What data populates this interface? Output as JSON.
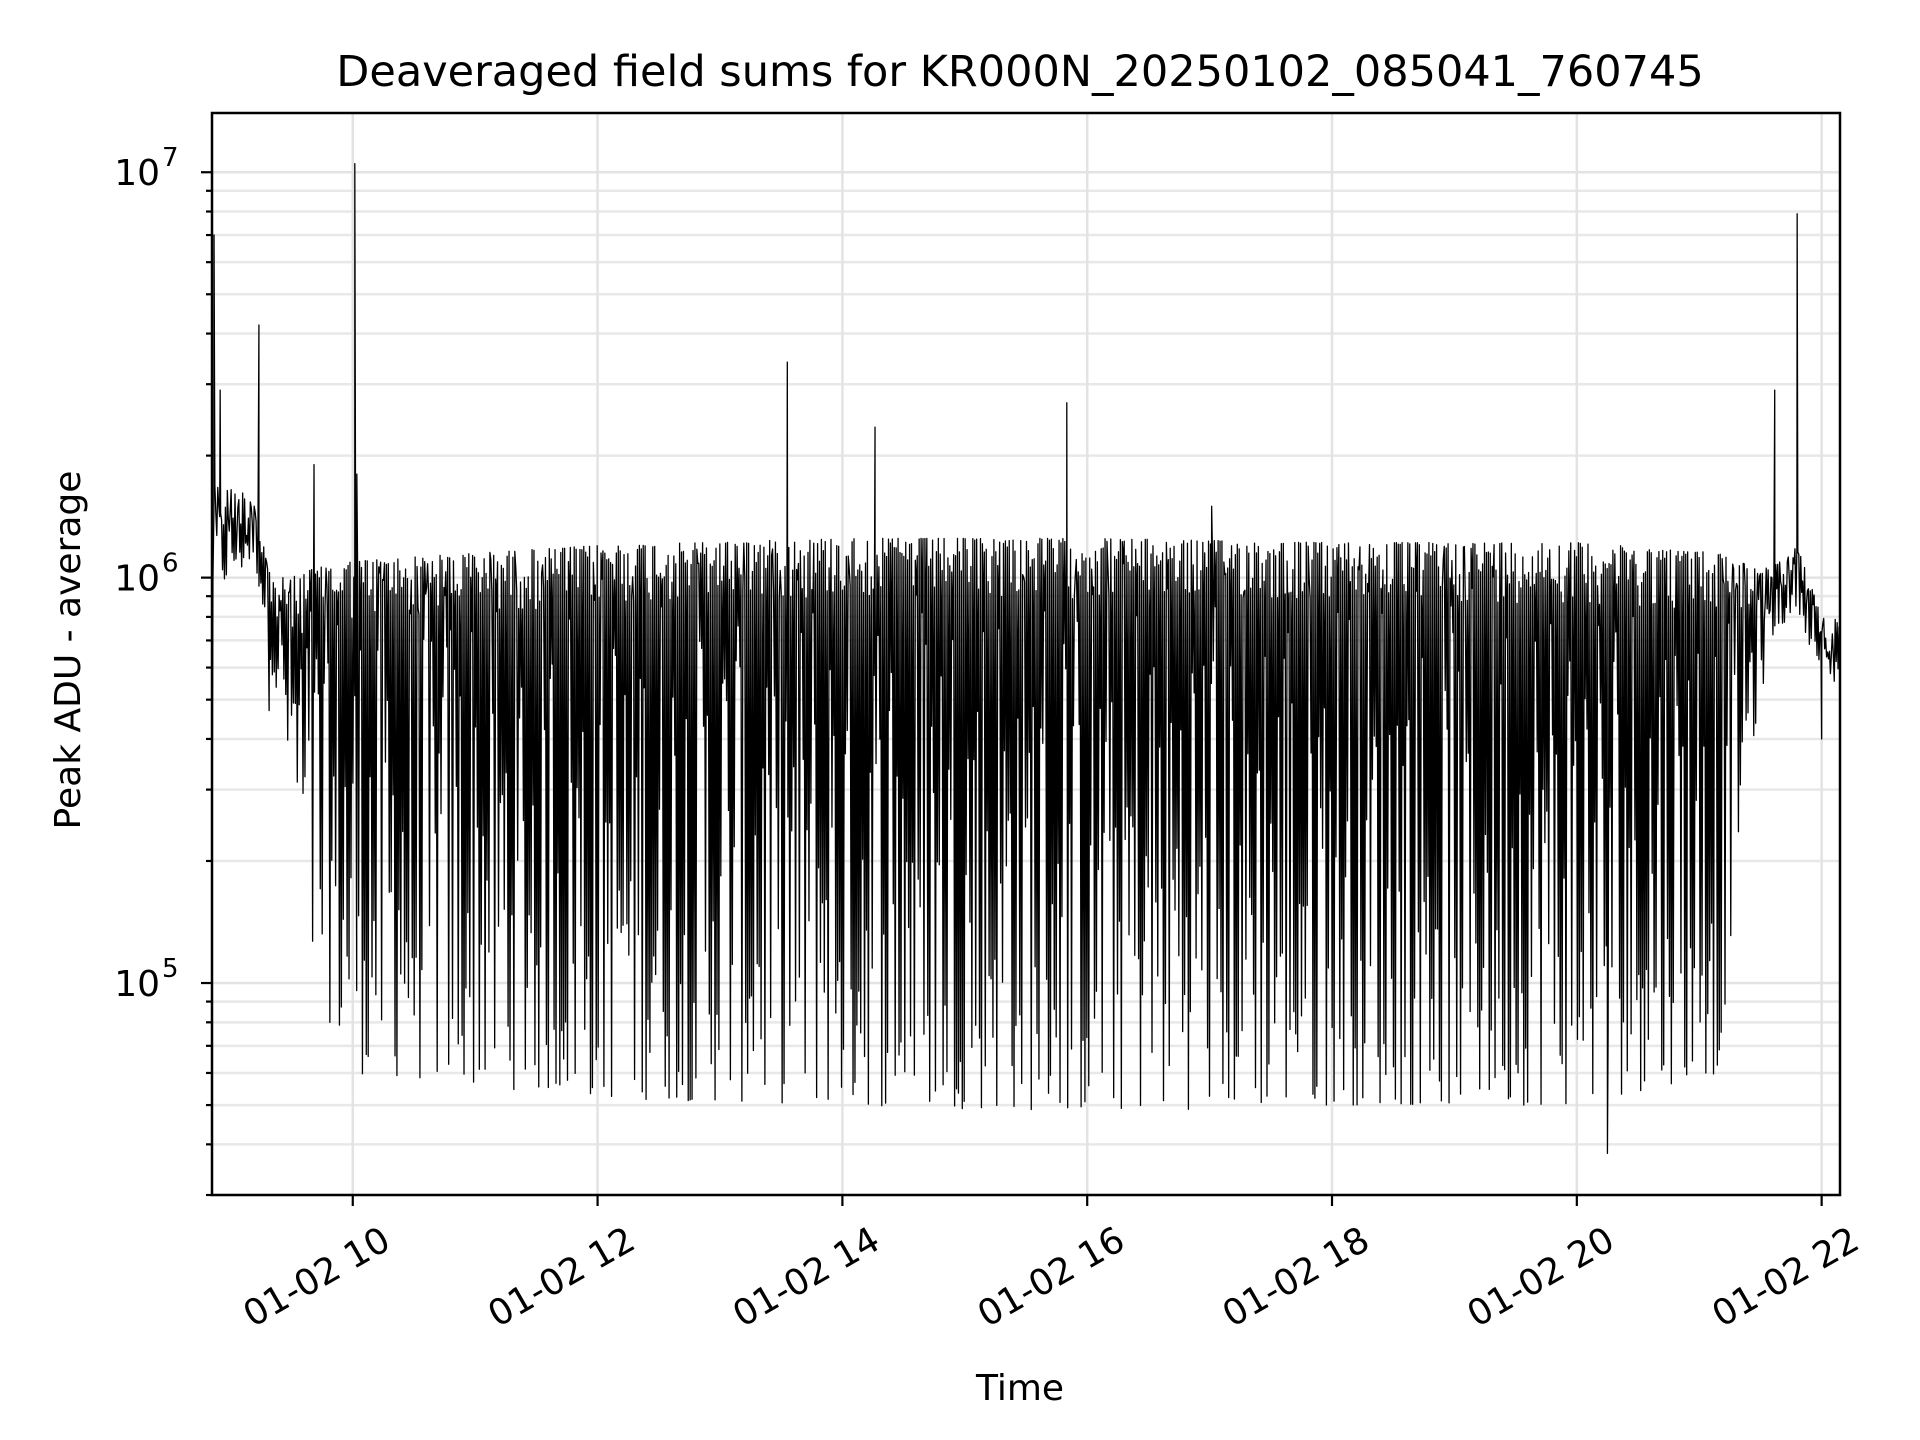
{
  "chart_data": {
    "type": "line",
    "title": "Deaveraged field sums for KR000N_20250102_085041_760745",
    "xlabel": "Time",
    "ylabel": "Peak ADU - average",
    "x_range": [
      "2025-01-02 08:51",
      "2025-01-02 22:09"
    ],
    "y_scale": "log",
    "ylim": [
      30000,
      14000000
    ],
    "grid": true,
    "legend": "none",
    "x_ticks": [
      {
        "value": "2025-01-02 10:00",
        "label": "01-02 10"
      },
      {
        "value": "2025-01-02 12:00",
        "label": "01-02 12"
      },
      {
        "value": "2025-01-02 14:00",
        "label": "01-02 14"
      },
      {
        "value": "2025-01-02 16:00",
        "label": "01-02 16"
      },
      {
        "value": "2025-01-02 18:00",
        "label": "01-02 18"
      },
      {
        "value": "2025-01-02 20:00",
        "label": "01-02 20"
      },
      {
        "value": "2025-01-02 22:00",
        "label": "01-02 22"
      }
    ],
    "y_ticks": [
      {
        "value": 100000,
        "base": "10",
        "exp": "5"
      },
      {
        "value": 1000000,
        "base": "10",
        "exp": "6"
      },
      {
        "value": 10000000,
        "base": "10",
        "exp": "7"
      }
    ],
    "series": [
      {
        "color": "#000000",
        "envelope": [
          {
            "time": "2025-01-02 08:51",
            "upper": 1700000,
            "lower": 900000
          },
          {
            "time": "2025-01-02 09:12",
            "upper": 1600000,
            "lower": 1100000
          },
          {
            "time": "2025-01-02 09:20",
            "upper": 1000000,
            "lower": 600000
          },
          {
            "time": "2025-01-02 09:30",
            "upper": 1000000,
            "lower": 300000
          },
          {
            "time": "2025-01-02 09:40",
            "upper": 1050000,
            "lower": 100000
          },
          {
            "time": "2025-01-02 10:00",
            "upper": 1100000,
            "lower": 60000
          },
          {
            "time": "2025-01-02 12:00",
            "upper": 1200000,
            "lower": 52000
          },
          {
            "time": "2025-01-02 14:00",
            "upper": 1250000,
            "lower": 50000
          },
          {
            "time": "2025-01-02 16:00",
            "upper": 1250000,
            "lower": 48000
          },
          {
            "time": "2025-01-02 18:00",
            "upper": 1220000,
            "lower": 50000
          },
          {
            "time": "2025-01-02 20:00",
            "upper": 1220000,
            "lower": 50000
          },
          {
            "time": "2025-01-02 21:10",
            "upper": 1150000,
            "lower": 60000
          },
          {
            "time": "2025-01-02 21:20",
            "upper": 1100000,
            "lower": 250000
          },
          {
            "time": "2025-01-02 21:35",
            "upper": 1050000,
            "lower": 700000
          },
          {
            "time": "2025-01-02 21:48",
            "upper": 1200000,
            "lower": 850000
          },
          {
            "time": "2025-01-02 22:00",
            "upper": 800000,
            "lower": 550000
          },
          {
            "time": "2025-01-02 22:09",
            "upper": 800000,
            "lower": 550000
          }
        ],
        "spikes": [
          {
            "time": "2025-01-02 08:51",
            "value": 180000
          },
          {
            "time": "2025-01-02 08:52",
            "value": 7000000
          },
          {
            "time": "2025-01-02 08:55",
            "value": 2900000
          },
          {
            "time": "2025-01-02 09:14",
            "value": 4200000
          },
          {
            "time": "2025-01-02 09:19",
            "value": 470000
          },
          {
            "time": "2025-01-02 09:41",
            "value": 1900000
          },
          {
            "time": "2025-01-02 10:01",
            "value": 10500000
          },
          {
            "time": "2025-01-02 10:02",
            "value": 1800000
          },
          {
            "time": "2025-01-02 13:33",
            "value": 3400000
          },
          {
            "time": "2025-01-02 14:16",
            "value": 2350000
          },
          {
            "time": "2025-01-02 15:50",
            "value": 2700000
          },
          {
            "time": "2025-01-02 17:01",
            "value": 1500000
          },
          {
            "time": "2025-01-02 20:15",
            "value": 38000
          },
          {
            "time": "2025-01-02 21:37",
            "value": 2900000
          },
          {
            "time": "2025-01-02 21:48",
            "value": 7900000
          },
          {
            "time": "2025-01-02 22:00",
            "value": 400000
          }
        ]
      }
    ]
  }
}
